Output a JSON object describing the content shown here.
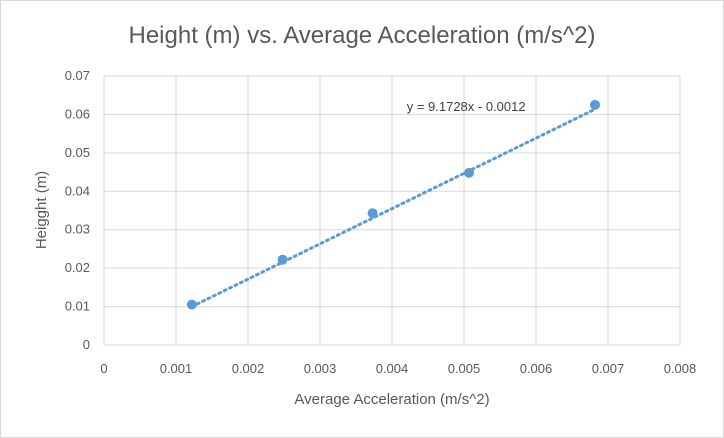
{
  "chart_data": {
    "type": "scatter",
    "title": "Height (m) vs. Average Acceleration (m/s^2)",
    "xlabel": "Average Acceleration (m/s^2)",
    "ylabel": "Heigght (m)",
    "xlim": [
      0,
      0.008
    ],
    "ylim": [
      0,
      0.07
    ],
    "x_ticks": [
      0,
      0.001,
      0.002,
      0.003,
      0.004,
      0.005,
      0.006,
      0.007,
      0.008
    ],
    "x_tick_labels": [
      "0",
      "0.001",
      "0.002",
      "0.003",
      "0.004",
      "0.005",
      "0.006",
      "0.007",
      "0.008"
    ],
    "y_ticks": [
      0,
      0.01,
      0.02,
      0.03,
      0.04,
      0.05,
      0.06,
      0.07
    ],
    "y_tick_labels": [
      "0",
      "0.01",
      "0.02",
      "0.03",
      "0.04",
      "0.05",
      "0.06",
      "0.07"
    ],
    "grid": true,
    "legend": "none",
    "points": [
      {
        "x": 0.00122,
        "y": 0.0105
      },
      {
        "x": 0.00248,
        "y": 0.0222
      },
      {
        "x": 0.00373,
        "y": 0.0343
      },
      {
        "x": 0.00507,
        "y": 0.0448
      },
      {
        "x": 0.00682,
        "y": 0.0625
      }
    ],
    "trendline": {
      "slope": 9.1728,
      "intercept": -0.0012,
      "x_range": [
        0.00122,
        0.00682
      ],
      "label": "y = 9.1728x - 0.0012",
      "style": "dotted"
    },
    "colors": {
      "marker": "#5b9bd5",
      "trendline": "#5b9bd5",
      "grid": "#d9d9d9",
      "text": "#595959"
    }
  }
}
